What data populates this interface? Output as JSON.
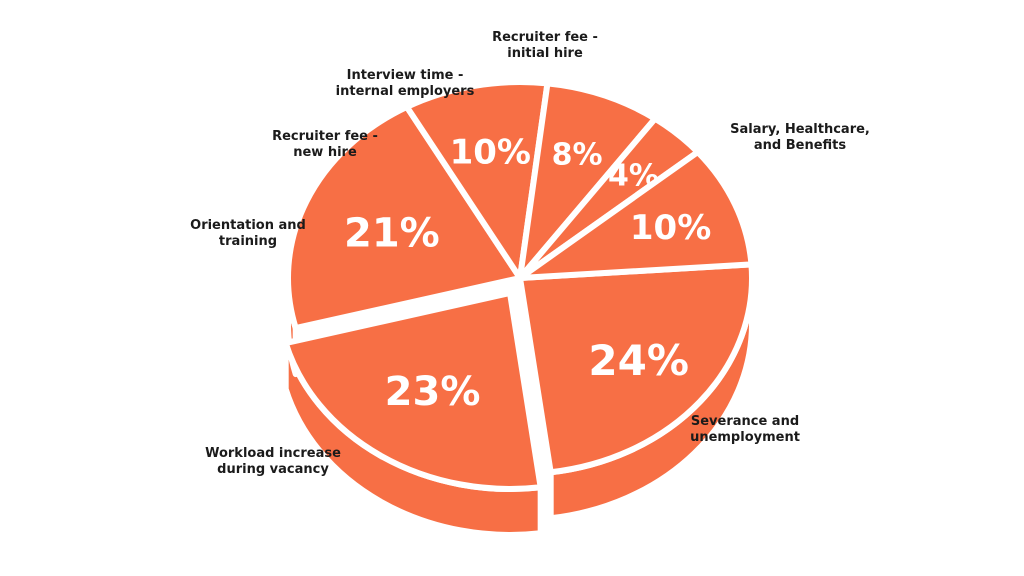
{
  "chart_data": {
    "type": "pie",
    "title": "",
    "slice_color": "#f76f45",
    "side_color": "#f76f45",
    "gap_color": "#ffffff",
    "slices": [
      {
        "label_lines": [
          "Salary, Healthcare,",
          "and Benefits"
        ],
        "value": 24,
        "value_label": "24%"
      },
      {
        "label_lines": [
          "Severance and",
          "unemployment"
        ],
        "value": 23,
        "value_label": "23%"
      },
      {
        "label_lines": [
          "Workload increase",
          "during vacancy"
        ],
        "value": 21,
        "value_label": "21%"
      },
      {
        "label_lines": [
          "Orientation and",
          "training"
        ],
        "value": 10,
        "value_label": "10%"
      },
      {
        "label_lines": [
          "Recruiter fee -",
          "new hire"
        ],
        "value": 8,
        "value_label": "8%"
      },
      {
        "label_lines": [
          "Interview time -",
          "internal employers"
        ],
        "value": 4,
        "value_label": "4%"
      },
      {
        "label_lines": [
          "Recruiter fee -",
          "initial hire"
        ],
        "value": 10,
        "value_label": "10%"
      }
    ]
  }
}
